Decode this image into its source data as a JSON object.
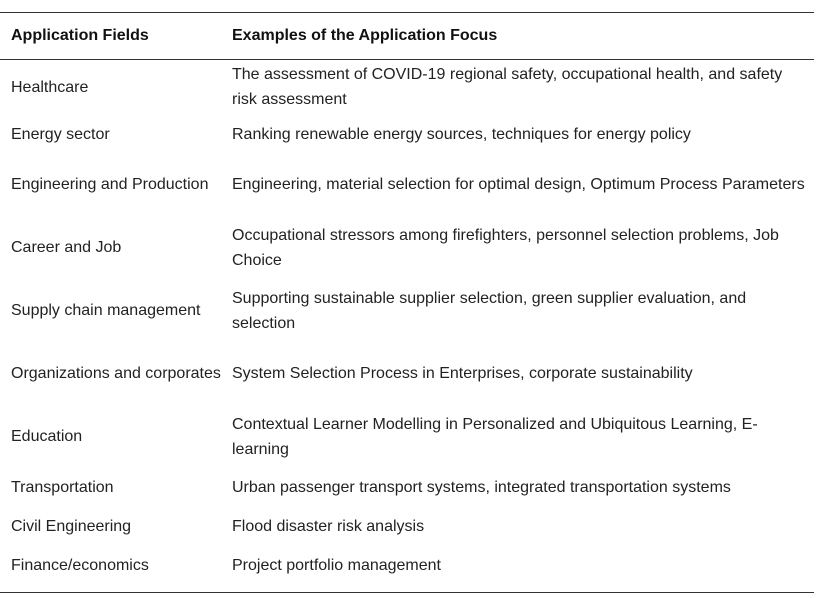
{
  "table": {
    "headers": [
      "Application Fields",
      "Examples of the Application Focus"
    ],
    "rows": [
      {
        "field": "Healthcare",
        "focus": "The assessment of COVID-19 regional safety, occupational health, and safety risk assessment"
      },
      {
        "field": "Energy sector",
        "focus": "Ranking renewable energy sources, techniques for energy policy"
      },
      {
        "field": "Engineering and Production",
        "focus": "Engineering, material selection for optimal design, Optimum Process Parameters"
      },
      {
        "field": "Career and Job",
        "focus": "Occupational stressors among firefighters, personnel selection problems, Job Choice"
      },
      {
        "field": "Supply chain management",
        "focus": "Supporting sustainable supplier selection, green supplier evaluation, and selection"
      },
      {
        "field": "Organizations and corporates",
        "focus": "System Selection Process in Enterprises, corporate sustainability"
      },
      {
        "field": "Education",
        "focus": "Contextual Learner Modelling in Personalized and Ubiquitous Learning, E-learning"
      },
      {
        "field": "Transportation",
        "focus": "Urban passenger transport systems, integrated transportation systems"
      },
      {
        "field": "Civil Engineering",
        "focus": "Flood disaster risk analysis"
      },
      {
        "field": "Finance/economics",
        "focus": "Project portfolio management"
      }
    ]
  }
}
